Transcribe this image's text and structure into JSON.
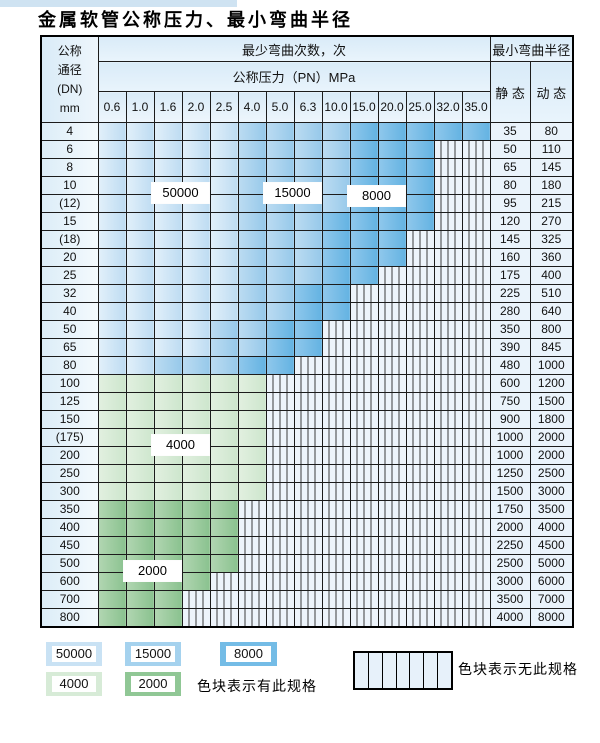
{
  "title": "金属软管公称压力、最小弯曲半径",
  "table": {
    "header": {
      "dn_lines": [
        "公称",
        "通径",
        "(DN)",
        "mm"
      ],
      "bend_times": "最少弯曲次数，次",
      "pressure": "公称压力（PN）MPa",
      "pressure_values": [
        "0.6",
        "1.0",
        "1.6",
        "2.0",
        "2.5",
        "4.0",
        "5.0",
        "6.3",
        "10.0",
        "15.0",
        "20.0",
        "25.0",
        "32.0",
        "35.0"
      ],
      "radius": "最小弯曲半径",
      "static": "静 态",
      "dynamic": "动 态"
    },
    "cell_legend_codes": {
      "L": "50000 cycles",
      "M": "15000 cycles",
      "D": "8000 cycles",
      "G4": "4000 cycles",
      "G2": "2000 cycles",
      "X": "no specification"
    },
    "rows": [
      {
        "dn": "4",
        "static": "35",
        "dynamic": "80",
        "cells": [
          "L",
          "L",
          "L",
          "L",
          "L",
          "M",
          "M",
          "M",
          "M",
          "D",
          "D",
          "D",
          "D",
          "D"
        ]
      },
      {
        "dn": "6",
        "static": "50",
        "dynamic": "110",
        "cells": [
          "L",
          "L",
          "L",
          "L",
          "L",
          "M",
          "M",
          "M",
          "M",
          "D",
          "D",
          "D",
          "X",
          "X"
        ]
      },
      {
        "dn": "8",
        "static": "65",
        "dynamic": "145",
        "cells": [
          "L",
          "L",
          "L",
          "L",
          "L",
          "M",
          "M",
          "M",
          "M",
          "D",
          "D",
          "D",
          "X",
          "X"
        ]
      },
      {
        "dn": "10",
        "static": "80",
        "dynamic": "180",
        "cells": [
          "L",
          "L",
          "L",
          "L",
          "L",
          "M",
          "M",
          "M",
          "M",
          "D",
          "D",
          "D",
          "X",
          "X"
        ]
      },
      {
        "dn": "(12)",
        "static": "95",
        "dynamic": "215",
        "cells": [
          "L",
          "L",
          "L",
          "L",
          "L",
          "M",
          "M",
          "M",
          "M",
          "D",
          "D",
          "D",
          "X",
          "X"
        ]
      },
      {
        "dn": "15",
        "static": "120",
        "dynamic": "270",
        "cells": [
          "L",
          "L",
          "L",
          "L",
          "L",
          "M",
          "M",
          "M",
          "D",
          "D",
          "D",
          "D",
          "X",
          "X"
        ]
      },
      {
        "dn": "(18)",
        "static": "145",
        "dynamic": "325",
        "cells": [
          "L",
          "L",
          "L",
          "L",
          "L",
          "M",
          "M",
          "M",
          "D",
          "D",
          "D",
          "X",
          "X",
          "X"
        ]
      },
      {
        "dn": "20",
        "static": "160",
        "dynamic": "360",
        "cells": [
          "L",
          "L",
          "L",
          "L",
          "L",
          "M",
          "M",
          "M",
          "D",
          "D",
          "D",
          "X",
          "X",
          "X"
        ]
      },
      {
        "dn": "25",
        "static": "175",
        "dynamic": "400",
        "cells": [
          "L",
          "L",
          "L",
          "L",
          "L",
          "M",
          "M",
          "M",
          "D",
          "D",
          "X",
          "X",
          "X",
          "X"
        ]
      },
      {
        "dn": "32",
        "static": "225",
        "dynamic": "510",
        "cells": [
          "L",
          "L",
          "L",
          "L",
          "L",
          "M",
          "M",
          "D",
          "D",
          "X",
          "X",
          "X",
          "X",
          "X"
        ]
      },
      {
        "dn": "40",
        "static": "280",
        "dynamic": "640",
        "cells": [
          "L",
          "L",
          "L",
          "L",
          "L",
          "M",
          "M",
          "D",
          "D",
          "X",
          "X",
          "X",
          "X",
          "X"
        ]
      },
      {
        "dn": "50",
        "static": "350",
        "dynamic": "800",
        "cells": [
          "L",
          "L",
          "L",
          "L",
          "M",
          "M",
          "D",
          "D",
          "X",
          "X",
          "X",
          "X",
          "X",
          "X"
        ]
      },
      {
        "dn": "65",
        "static": "390",
        "dynamic": "845",
        "cells": [
          "L",
          "L",
          "L",
          "L",
          "M",
          "M",
          "D",
          "D",
          "X",
          "X",
          "X",
          "X",
          "X",
          "X"
        ]
      },
      {
        "dn": "80",
        "static": "480",
        "dynamic": "1000",
        "cells": [
          "L",
          "L",
          "M",
          "M",
          "M",
          "D",
          "D",
          "X",
          "X",
          "X",
          "X",
          "X",
          "X",
          "X"
        ]
      },
      {
        "dn": "100",
        "static": "600",
        "dynamic": "1200",
        "cells": [
          "G4",
          "G4",
          "G4",
          "G4",
          "G4",
          "G4",
          "X",
          "X",
          "X",
          "X",
          "X",
          "X",
          "X",
          "X"
        ]
      },
      {
        "dn": "125",
        "static": "750",
        "dynamic": "1500",
        "cells": [
          "G4",
          "G4",
          "G4",
          "G4",
          "G4",
          "G4",
          "X",
          "X",
          "X",
          "X",
          "X",
          "X",
          "X",
          "X"
        ]
      },
      {
        "dn": "150",
        "static": "900",
        "dynamic": "1800",
        "cells": [
          "G4",
          "G4",
          "G4",
          "G4",
          "G4",
          "G4",
          "X",
          "X",
          "X",
          "X",
          "X",
          "X",
          "X",
          "X"
        ]
      },
      {
        "dn": "(175)",
        "static": "1000",
        "dynamic": "2000",
        "cells": [
          "G4",
          "G4",
          "G4",
          "G4",
          "G4",
          "G4",
          "X",
          "X",
          "X",
          "X",
          "X",
          "X",
          "X",
          "X"
        ]
      },
      {
        "dn": "200",
        "static": "1000",
        "dynamic": "2000",
        "cells": [
          "G4",
          "G4",
          "G4",
          "G4",
          "G4",
          "G4",
          "X",
          "X",
          "X",
          "X",
          "X",
          "X",
          "X",
          "X"
        ]
      },
      {
        "dn": "250",
        "static": "1250",
        "dynamic": "2500",
        "cells": [
          "G4",
          "G4",
          "G4",
          "G4",
          "G4",
          "G4",
          "X",
          "X",
          "X",
          "X",
          "X",
          "X",
          "X",
          "X"
        ]
      },
      {
        "dn": "300",
        "static": "1500",
        "dynamic": "3000",
        "cells": [
          "G4",
          "G4",
          "G4",
          "G4",
          "G4",
          "G4",
          "X",
          "X",
          "X",
          "X",
          "X",
          "X",
          "X",
          "X"
        ]
      },
      {
        "dn": "350",
        "static": "1750",
        "dynamic": "3500",
        "cells": [
          "G2",
          "G2",
          "G2",
          "G2",
          "G2",
          "X",
          "X",
          "X",
          "X",
          "X",
          "X",
          "X",
          "X",
          "X"
        ]
      },
      {
        "dn": "400",
        "static": "2000",
        "dynamic": "4000",
        "cells": [
          "G2",
          "G2",
          "G2",
          "G2",
          "G2",
          "X",
          "X",
          "X",
          "X",
          "X",
          "X",
          "X",
          "X",
          "X"
        ]
      },
      {
        "dn": "450",
        "static": "2250",
        "dynamic": "4500",
        "cells": [
          "G2",
          "G2",
          "G2",
          "G2",
          "G2",
          "X",
          "X",
          "X",
          "X",
          "X",
          "X",
          "X",
          "X",
          "X"
        ]
      },
      {
        "dn": "500",
        "static": "2500",
        "dynamic": "5000",
        "cells": [
          "G2",
          "G2",
          "G2",
          "G2",
          "G2",
          "X",
          "X",
          "X",
          "X",
          "X",
          "X",
          "X",
          "X",
          "X"
        ]
      },
      {
        "dn": "600",
        "static": "3000",
        "dynamic": "6000",
        "cells": [
          "G2",
          "G2",
          "G2",
          "G2",
          "X",
          "X",
          "X",
          "X",
          "X",
          "X",
          "X",
          "X",
          "X",
          "X"
        ]
      },
      {
        "dn": "700",
        "static": "3500",
        "dynamic": "7000",
        "cells": [
          "G2",
          "G2",
          "G2",
          "X",
          "X",
          "X",
          "X",
          "X",
          "X",
          "X",
          "X",
          "X",
          "X",
          "X"
        ]
      },
      {
        "dn": "800",
        "static": "4000",
        "dynamic": "8000",
        "cells": [
          "G2",
          "G2",
          "G2",
          "X",
          "X",
          "X",
          "X",
          "X",
          "X",
          "X",
          "X",
          "X",
          "X",
          "X"
        ]
      }
    ]
  },
  "overlay_labels": {
    "l50000": "50000",
    "l15000": "15000",
    "l8000": "8000",
    "l4000": "4000",
    "l2000": "2000"
  },
  "legend": {
    "sw50000": "50000",
    "sw15000": "15000",
    "sw8000": "8000",
    "sw4000": "4000",
    "sw2000": "2000",
    "has_spec_text": "色块表示有此规格",
    "no_spec_text": "色块表示无此规格"
  },
  "colors": {
    "cycles_50000": "#cde5f5",
    "cycles_15000": "#a8d3ee",
    "cycles_8000": "#76bde6",
    "cycles_4000": "#d8ecd8",
    "cycles_2000": "#9ccb9f",
    "no_spec_bg": "#edf4fb",
    "header_bg": "#dcecf8",
    "border": "#1c1c1c"
  }
}
